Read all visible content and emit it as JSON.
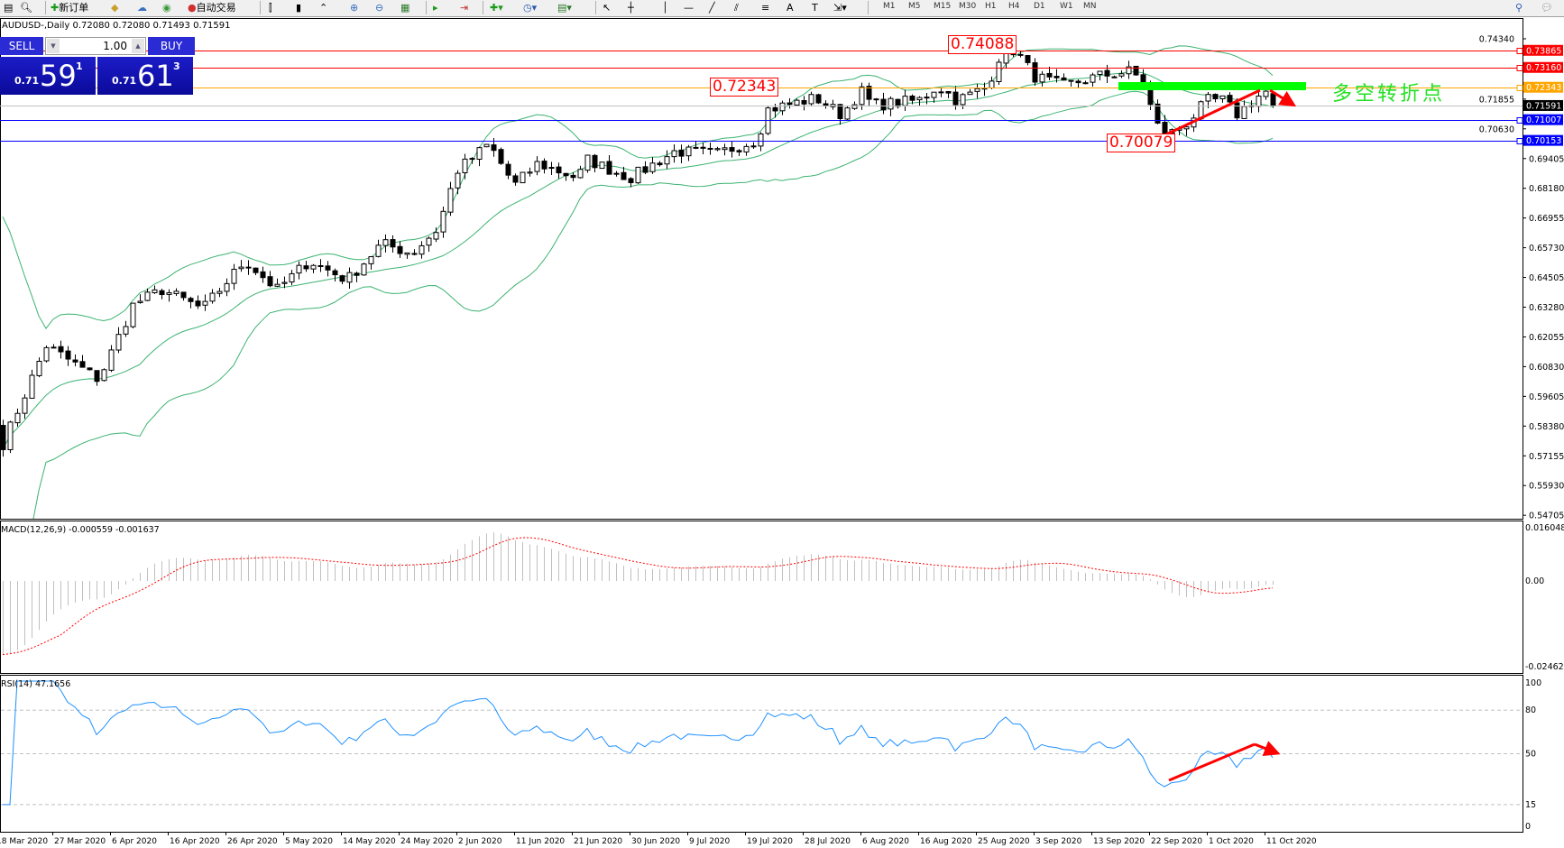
{
  "toolbar": {
    "new_order": "新订单",
    "auto_trading": "自动交易",
    "timeframes": [
      "M1",
      "M5",
      "M15",
      "M30",
      "H1",
      "H4",
      "D1",
      "W1",
      "MN"
    ],
    "icons": [
      "zoom-in-icon",
      "zoom-out-icon",
      "tile-icon",
      "scroll-icon",
      "shift-icon",
      "indicator-icon",
      "clock-icon",
      "template-icon",
      "cursor-icon",
      "crosshair-icon",
      "vertical-line-icon",
      "horizontal-line-icon",
      "trendline-icon",
      "fibonacci-icon",
      "text-icon",
      "label-icon",
      "arrow-icon",
      "search-icon",
      "chat-icon"
    ]
  },
  "chart": {
    "title": "AUDUSD-,Daily  0.72080 0.72080 0.71493 0.71591",
    "trade_panel": {
      "sell_label": "SELL",
      "buy_label": "BUY",
      "lot": "1.00",
      "sell_prefix": "0.71",
      "sell_big": "59",
      "sell_sup": "1",
      "buy_prefix": "0.71",
      "buy_big": "61",
      "buy_sup": "3"
    },
    "annotations": {
      "high_label": "0.74088",
      "mid_label": "0.72343",
      "low_label": "0.70079",
      "pivot_text": "多空转折点"
    },
    "colors": {
      "up": "#ffffff",
      "down": "#000000",
      "bands": "#3cb371",
      "macd_hist": "#c0c0c0",
      "macd_signal": "#ff0000",
      "rsi": "#1e90ff",
      "pivot_bar": "#00ff00",
      "arrow": "#ff0000"
    }
  },
  "chart_data": {
    "type": "candlestick",
    "symbol": "AUDUSD-",
    "timeframe": "Daily",
    "ohlc_last": {
      "open": 0.7208,
      "high": 0.7208,
      "low": 0.71493,
      "close": 0.71591
    },
    "price_axis_ticks": [
      "0.74340",
      "0.71855",
      "0.70630",
      "0.69405",
      "0.68180",
      "0.66955",
      "0.65730",
      "0.64505",
      "0.63280",
      "0.62055",
      "0.60830",
      "0.59605",
      "0.58380",
      "0.57155",
      "0.55930",
      "0.54705"
    ],
    "price_range": [
      0.54705,
      0.7434
    ],
    "date_axis_ticks": [
      "18 Mar 2020",
      "27 Mar 2020",
      "6 Apr 2020",
      "16 Apr 2020",
      "26 Apr 2020",
      "5 May 2020",
      "14 May 2020",
      "24 May 2020",
      "2 Jun 2020",
      "11 Jun 2020",
      "21 Jun 2020",
      "30 Jun 2020",
      "9 Jul 2020",
      "19 Jul 2020",
      "28 Jul 2020",
      "6 Aug 2020",
      "16 Aug 2020",
      "25 Aug 2020",
      "3 Sep 2020",
      "13 Sep 2020",
      "22 Sep 2020",
      "1 Oct 2020",
      "11 Oct 2020"
    ],
    "close_path": [
      [
        "2020-03-19",
        0.575
      ],
      [
        "2020-03-26",
        0.617
      ],
      [
        "2020-04-04",
        0.603
      ],
      [
        "2020-04-10",
        0.634
      ],
      [
        "2020-04-15",
        0.64
      ],
      [
        "2020-04-22",
        0.632
      ],
      [
        "2020-04-29",
        0.652
      ],
      [
        "2020-05-04",
        0.64
      ],
      [
        "2020-05-09",
        0.652
      ],
      [
        "2020-05-15",
        0.644
      ],
      [
        "2020-05-21",
        0.659
      ],
      [
        "2020-05-26",
        0.655
      ],
      [
        "2020-05-30",
        0.665
      ],
      [
        "2020-06-02",
        0.689
      ],
      [
        "2020-06-07",
        0.7
      ],
      [
        "2020-06-11",
        0.683
      ],
      [
        "2020-06-15",
        0.692
      ],
      [
        "2020-06-22",
        0.686
      ],
      [
        "2020-06-23",
        0.694
      ],
      [
        "2020-06-30",
        0.686
      ],
      [
        "2020-07-07",
        0.697
      ],
      [
        "2020-07-14",
        0.696
      ],
      [
        "2020-07-21",
        0.702
      ],
      [
        "2020-07-22",
        0.714
      ],
      [
        "2020-07-30",
        0.719
      ],
      [
        "2020-08-03",
        0.712
      ],
      [
        "2020-08-06",
        0.722
      ],
      [
        "2020-08-08",
        0.716
      ],
      [
        "2020-08-16",
        0.718
      ],
      [
        "2020-08-19",
        0.724
      ],
      [
        "2020-08-22",
        0.718
      ],
      [
        "2020-08-27",
        0.724
      ],
      [
        "2020-08-28",
        0.735
      ],
      [
        "2020-08-31",
        0.739
      ],
      [
        "2020-09-03",
        0.728
      ],
      [
        "2020-09-08",
        0.724
      ],
      [
        "2020-09-14",
        0.728
      ],
      [
        "2020-09-19",
        0.73
      ],
      [
        "2020-09-21",
        0.726
      ],
      [
        "2020-09-23",
        0.708
      ],
      [
        "2020-09-25",
        0.704
      ],
      [
        "2020-09-28",
        0.709
      ],
      [
        "2020-10-01",
        0.718
      ],
      [
        "2020-10-04",
        0.718
      ],
      [
        "2020-10-06",
        0.712
      ],
      [
        "2020-10-11",
        0.722
      ],
      [
        "2020-10-13",
        0.71591
      ]
    ],
    "horizontal_lines": [
      {
        "price": "0.73865",
        "color": "#ff0000",
        "tag_bg": "#ff0000"
      },
      {
        "price": "0.73160",
        "color": "#ff0000",
        "tag_bg": "#ff0000"
      },
      {
        "price": "0.72343",
        "color": "#ffa500",
        "tag_bg": "#ffa500"
      },
      {
        "price": "0.71591",
        "color": "#c0c0c0",
        "tag_bg": "#000000"
      },
      {
        "price": "0.71007",
        "color": "#0000ff",
        "tag_bg": "#0000ff"
      },
      {
        "price": "0.70153",
        "color": "#0000ff",
        "tag_bg": "#0000ff"
      }
    ],
    "indicators": {
      "bollinger": {
        "period": 20,
        "deviation": 2
      },
      "macd": {
        "label": "MACD(12,26,9) -0.000559 -0.001637",
        "ticks": [
          "0.016048",
          "0.00",
          "-0.024625"
        ],
        "range": [
          -0.024625,
          0.016048
        ]
      },
      "rsi": {
        "label": "RSI(14) 47.1656",
        "ticks": [
          "100",
          "80",
          "50",
          "15",
          "0"
        ],
        "levels": [
          80,
          50,
          15
        ]
      }
    }
  }
}
